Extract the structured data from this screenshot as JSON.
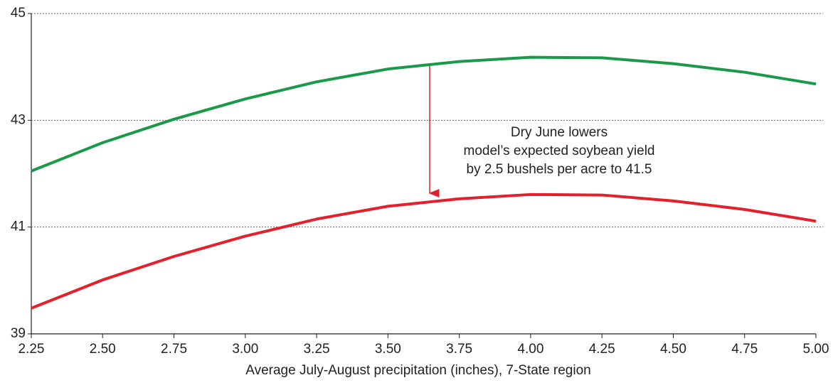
{
  "chart_data": {
    "type": "line",
    "x_label": "Average July-August precipitation (inches), 7-State region",
    "annotation": [
      "Dry June lowers",
      "model’s expected soybean yield",
      "by 2.5 bushels per acre to 41.5"
    ],
    "x": [
      2.25,
      2.5,
      2.75,
      3.0,
      3.25,
      3.5,
      3.75,
      4.0,
      4.25,
      4.5,
      4.75,
      5.0
    ],
    "series": [
      {
        "color": "#1a9a48",
        "values": [
          42.05,
          42.58,
          43.02,
          43.4,
          43.72,
          43.96,
          44.1,
          44.18,
          44.17,
          44.06,
          43.9,
          43.68
        ]
      },
      {
        "color": "#e3202b",
        "values": [
          39.48,
          40.01,
          40.45,
          40.83,
          41.15,
          41.39,
          41.53,
          41.61,
          41.6,
          41.49,
          41.33,
          41.11
        ]
      }
    ],
    "xlim": [
      2.25,
      5.0
    ],
    "xticks": [
      2.25,
      {
        "value": 2.5,
        "label": "2.50"
      },
      2.75,
      {
        "value": 3.0,
        "label": "3.00"
      },
      3.25,
      {
        "value": 3.5,
        "label": "3.50"
      },
      3.75,
      {
        "value": 4.0,
        "label": "4.00"
      },
      4.25,
      {
        "value": 4.5,
        "label": "4.50"
      },
      4.75,
      {
        "value": 5.0,
        "label": "5.00"
      }
    ],
    "ylim": [
      39,
      45
    ],
    "yticks": [
      39,
      41,
      43,
      45
    ],
    "grid": true
  }
}
